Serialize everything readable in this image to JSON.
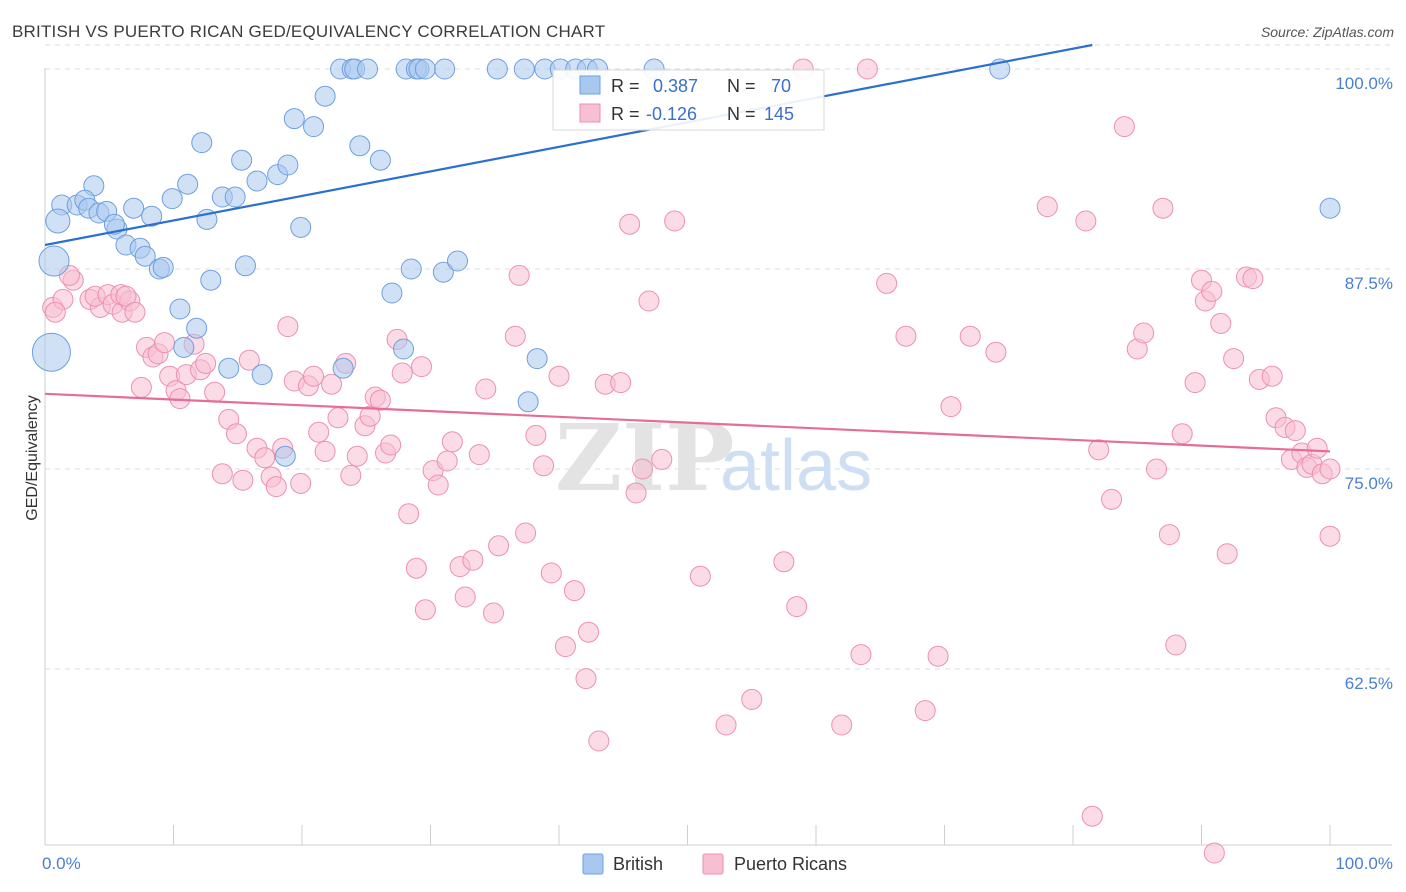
{
  "title": "BRITISH VS PUERTO RICAN GED/EQUIVALENCY CORRELATION CHART",
  "source": "Source: ZipAtlas.com",
  "watermark": {
    "zip": "ZIP",
    "atlas": "atlas"
  },
  "colors": {
    "british_fill": "#a9c8ef",
    "british_stroke": "#6d9fe0",
    "british_line": "#2b6fd1",
    "pr_fill": "#f7bfd1",
    "pr_stroke": "#ee8fb0",
    "pr_line": "#e66d97",
    "tick_label": "#4a7fd0",
    "grid": "#dedede"
  },
  "legend_box": {
    "rows": [
      {
        "r_label": "R =",
        "r_value": "0.387",
        "n_label": "N =",
        "n_value": "70"
      },
      {
        "r_label": "R =",
        "r_value": "-0.126",
        "n_label": "N =",
        "n_value": "145"
      }
    ]
  },
  "chart_data": {
    "type": "scatter",
    "title": "BRITISH VS PUERTO RICAN GED/EQUIVALENCY CORRELATION CHART",
    "xlabel": "",
    "ylabel": "GED/Equivalency",
    "x_tick_labels": [
      "0.0%",
      "100.0%"
    ],
    "y_tick_labels": [
      "100.0%",
      "87.5%",
      "75.0%",
      "62.5%"
    ],
    "y_ticks": [
      100,
      87.5,
      75,
      62.5
    ],
    "xlim": [
      0,
      100
    ],
    "ylim": [
      51.5,
      101.5
    ],
    "legend": [
      "British",
      "Puerto Ricans"
    ],
    "series": [
      {
        "name": "British",
        "r": 0.387,
        "n": 70,
        "trend": {
          "x0": 0,
          "y0": 89.0,
          "x1": 81.5,
          "y1": 101.5
        },
        "points": [
          [
            1.3,
            91.5
          ],
          [
            1.0,
            90.5
          ],
          [
            2.5,
            91.5
          ],
          [
            3.8,
            92.7
          ],
          [
            3.1,
            91.8
          ],
          [
            3.4,
            91.3
          ],
          [
            4.2,
            91.0
          ],
          [
            4.8,
            91.1
          ],
          [
            5.6,
            90.0
          ],
          [
            5.4,
            90.3
          ],
          [
            6.3,
            89.0
          ],
          [
            6.9,
            91.3
          ],
          [
            7.4,
            88.8
          ],
          [
            7.8,
            88.3
          ],
          [
            8.3,
            90.8
          ],
          [
            8.9,
            87.5
          ],
          [
            9.2,
            87.6
          ],
          [
            9.9,
            91.9
          ],
          [
            10.5,
            85.0
          ],
          [
            10.8,
            82.6
          ],
          [
            11.1,
            92.8
          ],
          [
            11.8,
            83.8
          ],
          [
            12.2,
            95.4
          ],
          [
            12.6,
            90.6
          ],
          [
            12.9,
            86.8
          ],
          [
            13.8,
            92.0
          ],
          [
            14.3,
            81.3
          ],
          [
            15.3,
            94.3
          ],
          [
            14.8,
            92.0
          ],
          [
            15.6,
            87.7
          ],
          [
            16.5,
            93.0
          ],
          [
            16.9,
            80.9
          ],
          [
            18.1,
            93.4
          ],
          [
            18.7,
            75.8
          ],
          [
            18.9,
            94.0
          ],
          [
            19.4,
            96.9
          ],
          [
            19.9,
            90.1
          ],
          [
            20.9,
            96.4
          ],
          [
            21.8,
            98.3
          ],
          [
            23.0,
            100
          ],
          [
            23.9,
            100
          ],
          [
            24.1,
            100
          ],
          [
            23.2,
            81.3
          ],
          [
            24.5,
            95.2
          ],
          [
            25.1,
            100
          ],
          [
            26.1,
            94.3
          ],
          [
            27.0,
            86.0
          ],
          [
            27.9,
            82.5
          ],
          [
            28.1,
            100
          ],
          [
            28.9,
            100
          ],
          [
            29.1,
            100
          ],
          [
            29.6,
            100
          ],
          [
            28.5,
            87.5
          ],
          [
            31.1,
            100
          ],
          [
            31.0,
            87.3
          ],
          [
            32.1,
            88.0
          ],
          [
            35.2,
            100
          ],
          [
            37.3,
            100
          ],
          [
            37.6,
            79.2
          ],
          [
            38.3,
            81.9
          ],
          [
            38.9,
            100
          ],
          [
            40.1,
            100
          ],
          [
            41.3,
            100
          ],
          [
            42.2,
            100
          ],
          [
            43.0,
            100
          ],
          [
            47.4,
            100
          ],
          [
            74.3,
            100
          ],
          [
            100,
            91.3
          ],
          [
            0.7,
            88.0
          ],
          [
            0.5,
            82.3
          ]
        ],
        "sizes": [
          1,
          1.2,
          1,
          1,
          1,
          1,
          1,
          1,
          1,
          1,
          1,
          1,
          1,
          1,
          1,
          1,
          1,
          1,
          1,
          1,
          1,
          1,
          1,
          1,
          1,
          1,
          1,
          1,
          1,
          1,
          1,
          1,
          1,
          1,
          1,
          1,
          1,
          1,
          1,
          1,
          1,
          1,
          1,
          1,
          1,
          1,
          1,
          1,
          1,
          1,
          1,
          1,
          1,
          1,
          1,
          1,
          1,
          1,
          1,
          1,
          1,
          1,
          1,
          1,
          1,
          1,
          1,
          1,
          1.5,
          1.9
        ]
      },
      {
        "name": "Puerto Ricans",
        "r": -0.126,
        "n": 145,
        "trend": {
          "x0": 0,
          "y0": 79.7,
          "x1": 100,
          "y1": 76.1
        },
        "points": [
          [
            0.6,
            85.1
          ],
          [
            1.4,
            85.6
          ],
          [
            2.2,
            86.8
          ],
          [
            1.9,
            87.1
          ],
          [
            3.5,
            85.6
          ],
          [
            4.3,
            85.1
          ],
          [
            3.9,
            85.8
          ],
          [
            4.9,
            85.9
          ],
          [
            5.3,
            85.3
          ],
          [
            6.0,
            84.8
          ],
          [
            5.9,
            85.9
          ],
          [
            6.6,
            85.5
          ],
          [
            6.3,
            85.8
          ],
          [
            7.0,
            84.8
          ],
          [
            7.5,
            80.1
          ],
          [
            7.9,
            82.6
          ],
          [
            8.4,
            82.0
          ],
          [
            8.8,
            82.2
          ],
          [
            9.3,
            82.9
          ],
          [
            9.7,
            80.8
          ],
          [
            10.2,
            79.9
          ],
          [
            10.5,
            79.4
          ],
          [
            11.0,
            80.9
          ],
          [
            11.6,
            82.8
          ],
          [
            12.1,
            81.2
          ],
          [
            12.5,
            81.6
          ],
          [
            13.2,
            79.8
          ],
          [
            13.8,
            74.7
          ],
          [
            14.3,
            78.1
          ],
          [
            14.9,
            77.2
          ],
          [
            15.4,
            74.3
          ],
          [
            15.9,
            81.8
          ],
          [
            16.5,
            76.3
          ],
          [
            17.1,
            75.7
          ],
          [
            17.6,
            74.5
          ],
          [
            18.0,
            73.9
          ],
          [
            18.5,
            76.3
          ],
          [
            18.9,
            83.9
          ],
          [
            19.4,
            80.5
          ],
          [
            19.9,
            74.1
          ],
          [
            20.5,
            80.2
          ],
          [
            20.9,
            80.8
          ],
          [
            21.3,
            77.3
          ],
          [
            21.8,
            76.1
          ],
          [
            22.3,
            80.3
          ],
          [
            22.8,
            78.2
          ],
          [
            23.4,
            81.6
          ],
          [
            23.8,
            74.6
          ],
          [
            24.3,
            75.8
          ],
          [
            24.9,
            77.7
          ],
          [
            25.3,
            78.3
          ],
          [
            25.7,
            79.5
          ],
          [
            26.1,
            79.3
          ],
          [
            26.5,
            76.0
          ],
          [
            26.9,
            76.5
          ],
          [
            27.4,
            83.1
          ],
          [
            27.8,
            81.0
          ],
          [
            28.3,
            72.2
          ],
          [
            28.9,
            68.8
          ],
          [
            29.3,
            81.4
          ],
          [
            29.6,
            66.2
          ],
          [
            30.2,
            74.9
          ],
          [
            30.6,
            74.0
          ],
          [
            31.3,
            75.5
          ],
          [
            31.7,
            76.7
          ],
          [
            32.3,
            68.9
          ],
          [
            32.7,
            67.0
          ],
          [
            33.3,
            69.3
          ],
          [
            33.8,
            75.9
          ],
          [
            34.3,
            80.0
          ],
          [
            34.9,
            66.0
          ],
          [
            35.3,
            70.2
          ],
          [
            36.6,
            83.3
          ],
          [
            36.9,
            87.1
          ],
          [
            37.4,
            71.0
          ],
          [
            38.2,
            77.1
          ],
          [
            38.8,
            75.2
          ],
          [
            39.4,
            68.5
          ],
          [
            40.0,
            80.8
          ],
          [
            40.5,
            63.9
          ],
          [
            41.2,
            67.4
          ],
          [
            42.1,
            61.9
          ],
          [
            42.3,
            64.8
          ],
          [
            43.1,
            58.0
          ],
          [
            43.6,
            80.3
          ],
          [
            44.8,
            80.4
          ],
          [
            45.5,
            90.3
          ],
          [
            46.0,
            73.5
          ],
          [
            46.5,
            75.0
          ],
          [
            47.0,
            85.5
          ],
          [
            48.0,
            75.6
          ],
          [
            49.0,
            90.5
          ],
          [
            51.0,
            68.3
          ],
          [
            53.0,
            59.0
          ],
          [
            55.0,
            60.6
          ],
          [
            57.5,
            69.2
          ],
          [
            58.5,
            66.4
          ],
          [
            59.0,
            100
          ],
          [
            62.0,
            59.0
          ],
          [
            63.5,
            63.4
          ],
          [
            64.0,
            100
          ],
          [
            65.5,
            86.6
          ],
          [
            67.0,
            83.3
          ],
          [
            68.5,
            59.9
          ],
          [
            69.5,
            63.3
          ],
          [
            70.5,
            78.9
          ],
          [
            72.0,
            83.3
          ],
          [
            74.0,
            82.3
          ],
          [
            78.0,
            91.4
          ],
          [
            81.0,
            90.5
          ],
          [
            81.5,
            53.3
          ],
          [
            82.0,
            76.2
          ],
          [
            83.0,
            73.1
          ],
          [
            84.0,
            96.4
          ],
          [
            85.0,
            82.5
          ],
          [
            85.5,
            83.5
          ],
          [
            86.5,
            75.0
          ],
          [
            87.0,
            91.3
          ],
          [
            87.5,
            70.9
          ],
          [
            88.0,
            64.0
          ],
          [
            88.5,
            77.2
          ],
          [
            89.5,
            80.4
          ],
          [
            90.0,
            86.8
          ],
          [
            90.3,
            85.5
          ],
          [
            90.8,
            86.1
          ],
          [
            91.5,
            84.1
          ],
          [
            92.0,
            69.7
          ],
          [
            92.5,
            81.9
          ],
          [
            93.5,
            87.0
          ],
          [
            94.0,
            86.9
          ],
          [
            94.5,
            80.6
          ],
          [
            95.5,
            80.8
          ],
          [
            95.8,
            78.2
          ],
          [
            96.5,
            77.6
          ],
          [
            97.0,
            75.6
          ],
          [
            97.3,
            77.4
          ],
          [
            97.8,
            76.0
          ],
          [
            98.2,
            75.1
          ],
          [
            98.6,
            75.3
          ],
          [
            99.0,
            76.3
          ],
          [
            99.4,
            74.7
          ],
          [
            100.0,
            70.8
          ],
          [
            100.0,
            75.0
          ],
          [
            91.0,
            51.0
          ],
          [
            0.8,
            84.8
          ]
        ],
        "sizes": []
      }
    ]
  }
}
